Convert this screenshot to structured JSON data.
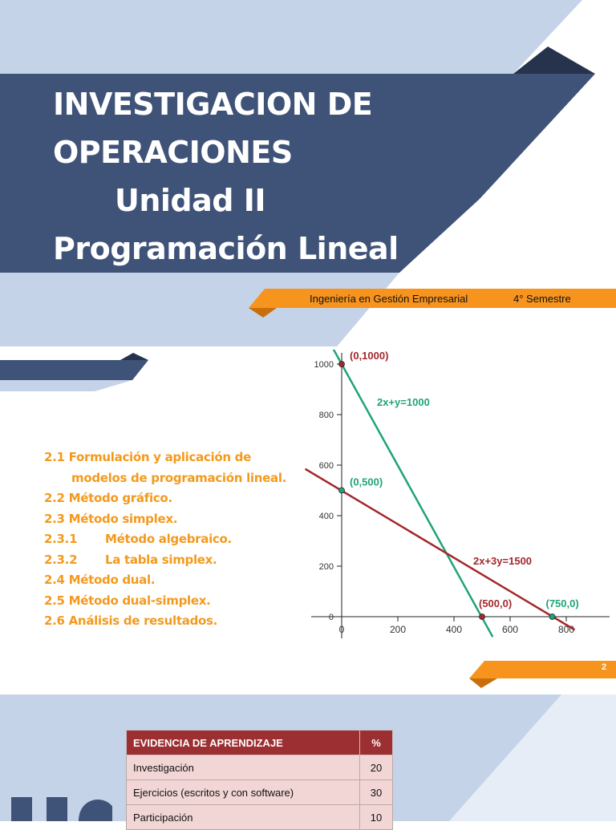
{
  "slide": {
    "title_lines": [
      "INVESTIGACION DE",
      "OPERACIONES",
      "Unidad II",
      "Programación Lineal"
    ],
    "career": "Ingeniería en Gestión Empresarial",
    "semester": "4° Semestre",
    "page_number": "2"
  },
  "topics": [
    {
      "num": "2.1",
      "text": "Formulación y aplicación de"
    },
    {
      "num": "",
      "text": "modelos de programación lineal."
    },
    {
      "num": "2.2",
      "text": "Método gráfico."
    },
    {
      "num": "2.3",
      "text": "Método simplex."
    },
    {
      "num": "2.3.1",
      "text": "Método algebraico."
    },
    {
      "num": "2.3.2",
      "text": "La tabla simplex."
    },
    {
      "num": "2.4",
      "text": "Método dual."
    },
    {
      "num": "2.5",
      "text": "Método dual-simplex."
    },
    {
      "num": "2.6",
      "text": "Análisis de resultados."
    }
  ],
  "colors": {
    "navy": "#3f5277",
    "light_blue": "#c5d3e8",
    "orange": "#f7941e",
    "green_line": "#1fa37a",
    "red_line": "#a3282c",
    "table_header": "#9c2f32",
    "table_row": "#f2d6d6"
  },
  "chart_data": {
    "type": "line",
    "xlim": [
      0,
      800
    ],
    "ylim": [
      0,
      1000
    ],
    "x_ticks": [
      0,
      200,
      400,
      600,
      800
    ],
    "y_ticks": [
      0,
      200,
      400,
      600,
      800,
      1000
    ],
    "series": [
      {
        "name": "2x+y=1000",
        "color": "#1fa37a",
        "points": [
          [
            0,
            1000
          ],
          [
            500,
            0
          ]
        ]
      },
      {
        "name": "2x+3y=1500",
        "color": "#a3282c",
        "points": [
          [
            0,
            500
          ],
          [
            750,
            0
          ]
        ]
      }
    ],
    "points": [
      {
        "label": "(0,1000)",
        "x": 0,
        "y": 1000,
        "color": "#a3282c"
      },
      {
        "label": "(0,500)",
        "x": 0,
        "y": 500,
        "color": "#1fa37a"
      },
      {
        "label": "(500,0)",
        "x": 500,
        "y": 0,
        "color": "#a3282c"
      },
      {
        "label": "(750,0)",
        "x": 750,
        "y": 0,
        "color": "#1fa37a"
      }
    ]
  },
  "evidence_table": {
    "headers": [
      "EVIDENCIA DE APRENDIZAJE",
      "%"
    ],
    "rows": [
      [
        "Investigación",
        "20"
      ],
      [
        "Ejercicios (escritos y con software)",
        "30"
      ],
      [
        "Participación",
        "10"
      ]
    ]
  }
}
